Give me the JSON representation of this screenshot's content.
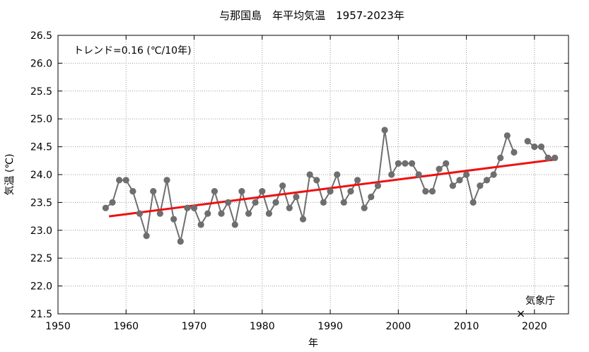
{
  "chart_data": {
    "type": "line",
    "title": "与那国島　年平均気温　1957-2023年",
    "xlabel": "年",
    "ylabel": "気温 (℃)",
    "xlim": [
      1950,
      2025
    ],
    "ylim": [
      21.5,
      26.5
    ],
    "x_ticks": [
      "1950",
      "1960",
      "1970",
      "1980",
      "1990",
      "2000",
      "2010",
      "2020"
    ],
    "y_ticks": [
      "21.5",
      "22.0",
      "22.5",
      "23.0",
      "23.5",
      "24.0",
      "24.5",
      "25.0",
      "25.5",
      "26.0",
      "26.5"
    ],
    "grid": true,
    "trend_label": "トレンド=0.16 (℃/10年)",
    "source_label": "気象庁",
    "series": [
      {
        "color": "#6e6e6e",
        "x": [
          1957,
          1958,
          1959,
          1960,
          1961,
          1962,
          1963,
          1964,
          1965,
          1966,
          1967,
          1968,
          1969,
          1970,
          1971,
          1972,
          1973,
          1974,
          1975,
          1976,
          1977,
          1978,
          1979,
          1980,
          1981,
          1982,
          1983,
          1984,
          1985,
          1986,
          1987,
          1988,
          1989,
          1990,
          1991,
          1992,
          1993,
          1994,
          1995,
          1996,
          1997,
          1998,
          1999,
          2000,
          2001,
          2002,
          2003,
          2004,
          2005,
          2006,
          2007,
          2008,
          2009,
          2010,
          2011,
          2012,
          2013,
          2014,
          2015,
          2016,
          2017,
          2018,
          2019,
          2020,
          2021,
          2022,
          2023
        ],
        "y": [
          23.4,
          23.5,
          23.9,
          23.9,
          23.7,
          23.3,
          22.9,
          23.7,
          23.3,
          23.9,
          23.2,
          22.8,
          23.4,
          23.4,
          23.1,
          23.3,
          23.7,
          23.3,
          23.5,
          23.1,
          23.7,
          23.3,
          23.5,
          23.7,
          23.3,
          23.5,
          23.8,
          23.4,
          23.6,
          23.2,
          24.0,
          23.9,
          23.5,
          23.7,
          24.0,
          23.5,
          23.7,
          23.9,
          23.4,
          23.6,
          23.8,
          24.8,
          24.0,
          24.2,
          24.2,
          24.2,
          24.0,
          23.7,
          23.7,
          24.1,
          24.2,
          23.8,
          23.9,
          24.0,
          23.5,
          23.8,
          23.9,
          24.0,
          24.3,
          24.7,
          24.4,
          null,
          24.6,
          24.5,
          24.5,
          24.3,
          24.3
        ]
      },
      {
        "type": "trend",
        "color": "#ee1111",
        "x": [
          1957.5,
          2023
        ],
        "y": [
          23.25,
          24.27
        ]
      }
    ],
    "missing_markers": [
      {
        "x": 2018,
        "y": 21.5,
        "symbol": "×"
      }
    ]
  }
}
